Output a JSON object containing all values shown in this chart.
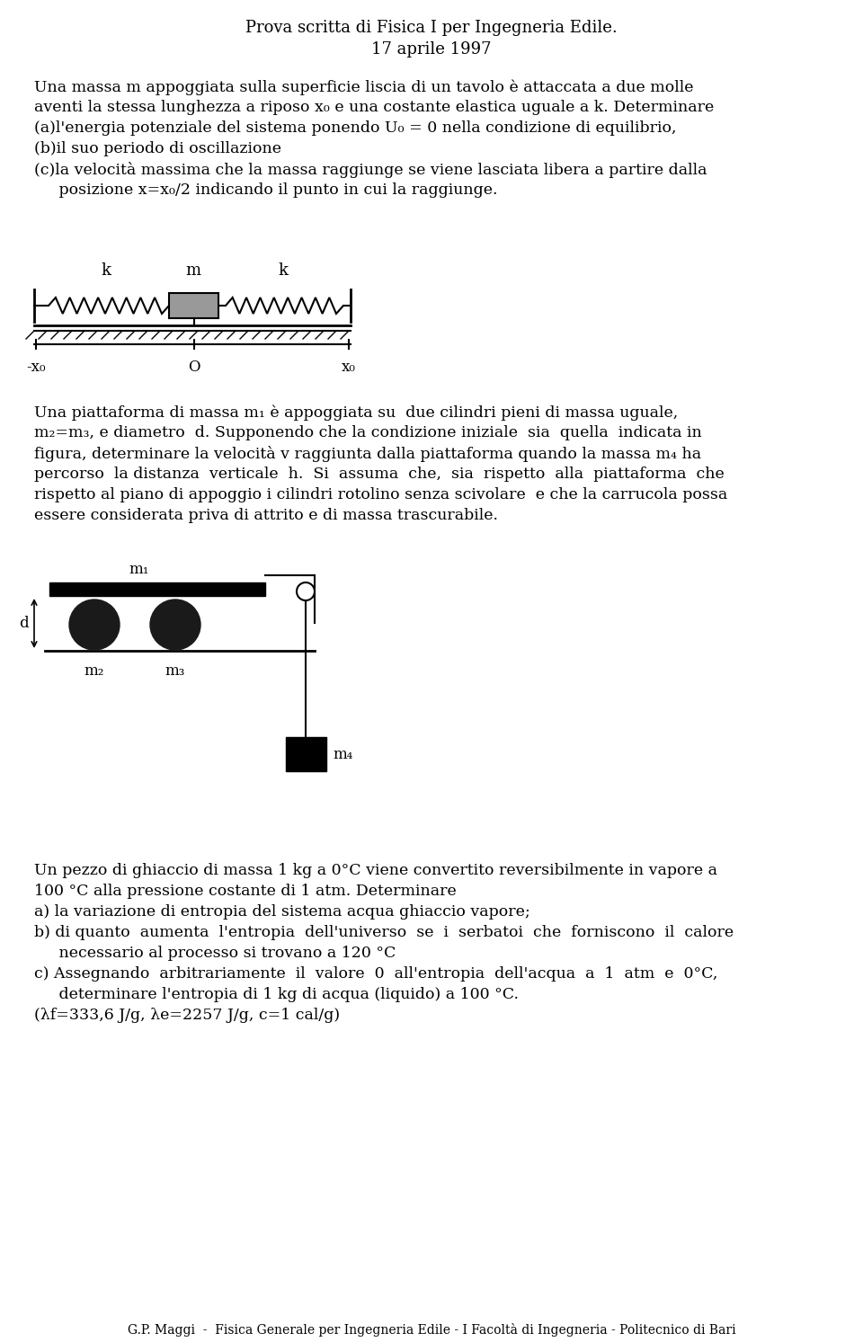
{
  "title_line1": "Prova scritta di Fisica I per Ingegneria Edile.",
  "title_line2": "17 aprile 1997",
  "para1_lines": [
    "Una massa m appoggiata sulla superficie liscia di un tavolo è attaccata a due molle",
    "aventi la stessa lunghezza a riposo x₀ e una costante elastica uguale a k. Determinare",
    "(a)l'energia potenziale del sistema ponendo U₀ = 0 nella condizione di equilibrio,",
    "(b)il suo periodo di oscillazione",
    "(c)la velocità massima che la massa raggiunge se viene lasciata libera a partire dalla",
    "     posizione x=x₀/2 indicando il punto in cui la raggiunge."
  ],
  "para2_lines": [
    "Una piattaforma di massa m₁ è appoggiata su  due cilindri pieni di massa uguale,",
    "m₂=m₃, e diametro  d. Supponendo che la condizione iniziale  sia  quella  indicata in",
    "figura, determinare la velocità v raggiunta dalla piattaforma quando la massa m₄ ha",
    "percorso  la distanza  verticale  h.  Si  assuma  che,  sia  rispetto  alla  piattaforma  che",
    "rispetto al piano di appoggio i cilindri rotolino senza scivolare  e che la carrucola possa",
    "essere considerata priva di attrito e di massa trascurabile."
  ],
  "para3_lines": [
    "Un pezzo di ghiaccio di massa 1 kg a 0°C viene convertito reversibilmente in vapore a",
    "100 °C alla pressione costante di 1 atm. Determinare",
    "a) la variazione di entropia del sistema acqua ghiaccio vapore;",
    "b) di quanto  aumenta  l'entropia  dell'universo  se  i  serbatoi  che  forniscono  il  calore",
    "     necessario al processo si trovano a 120 °C",
    "c) Assegnando  arbitrariamente  il  valore  0  all'entropia  dell'acqua  a  1  atm  e  0°C,",
    "     determinare l'entropia di 1 kg di acqua (liquido) a 100 °C.",
    "(λf=333,6 J/g, λe=2257 J/g, c=1 cal/g)"
  ],
  "footer": "G.P. Maggi  -  Fisica Generale per Ingegneria Edile - I Facoltà di Ingegneria - Politecnico di Bari",
  "bg_color": "#ffffff",
  "text_color": "#000000",
  "font_size_title": 13,
  "font_size_body": 12.5,
  "font_size_footer": 10
}
